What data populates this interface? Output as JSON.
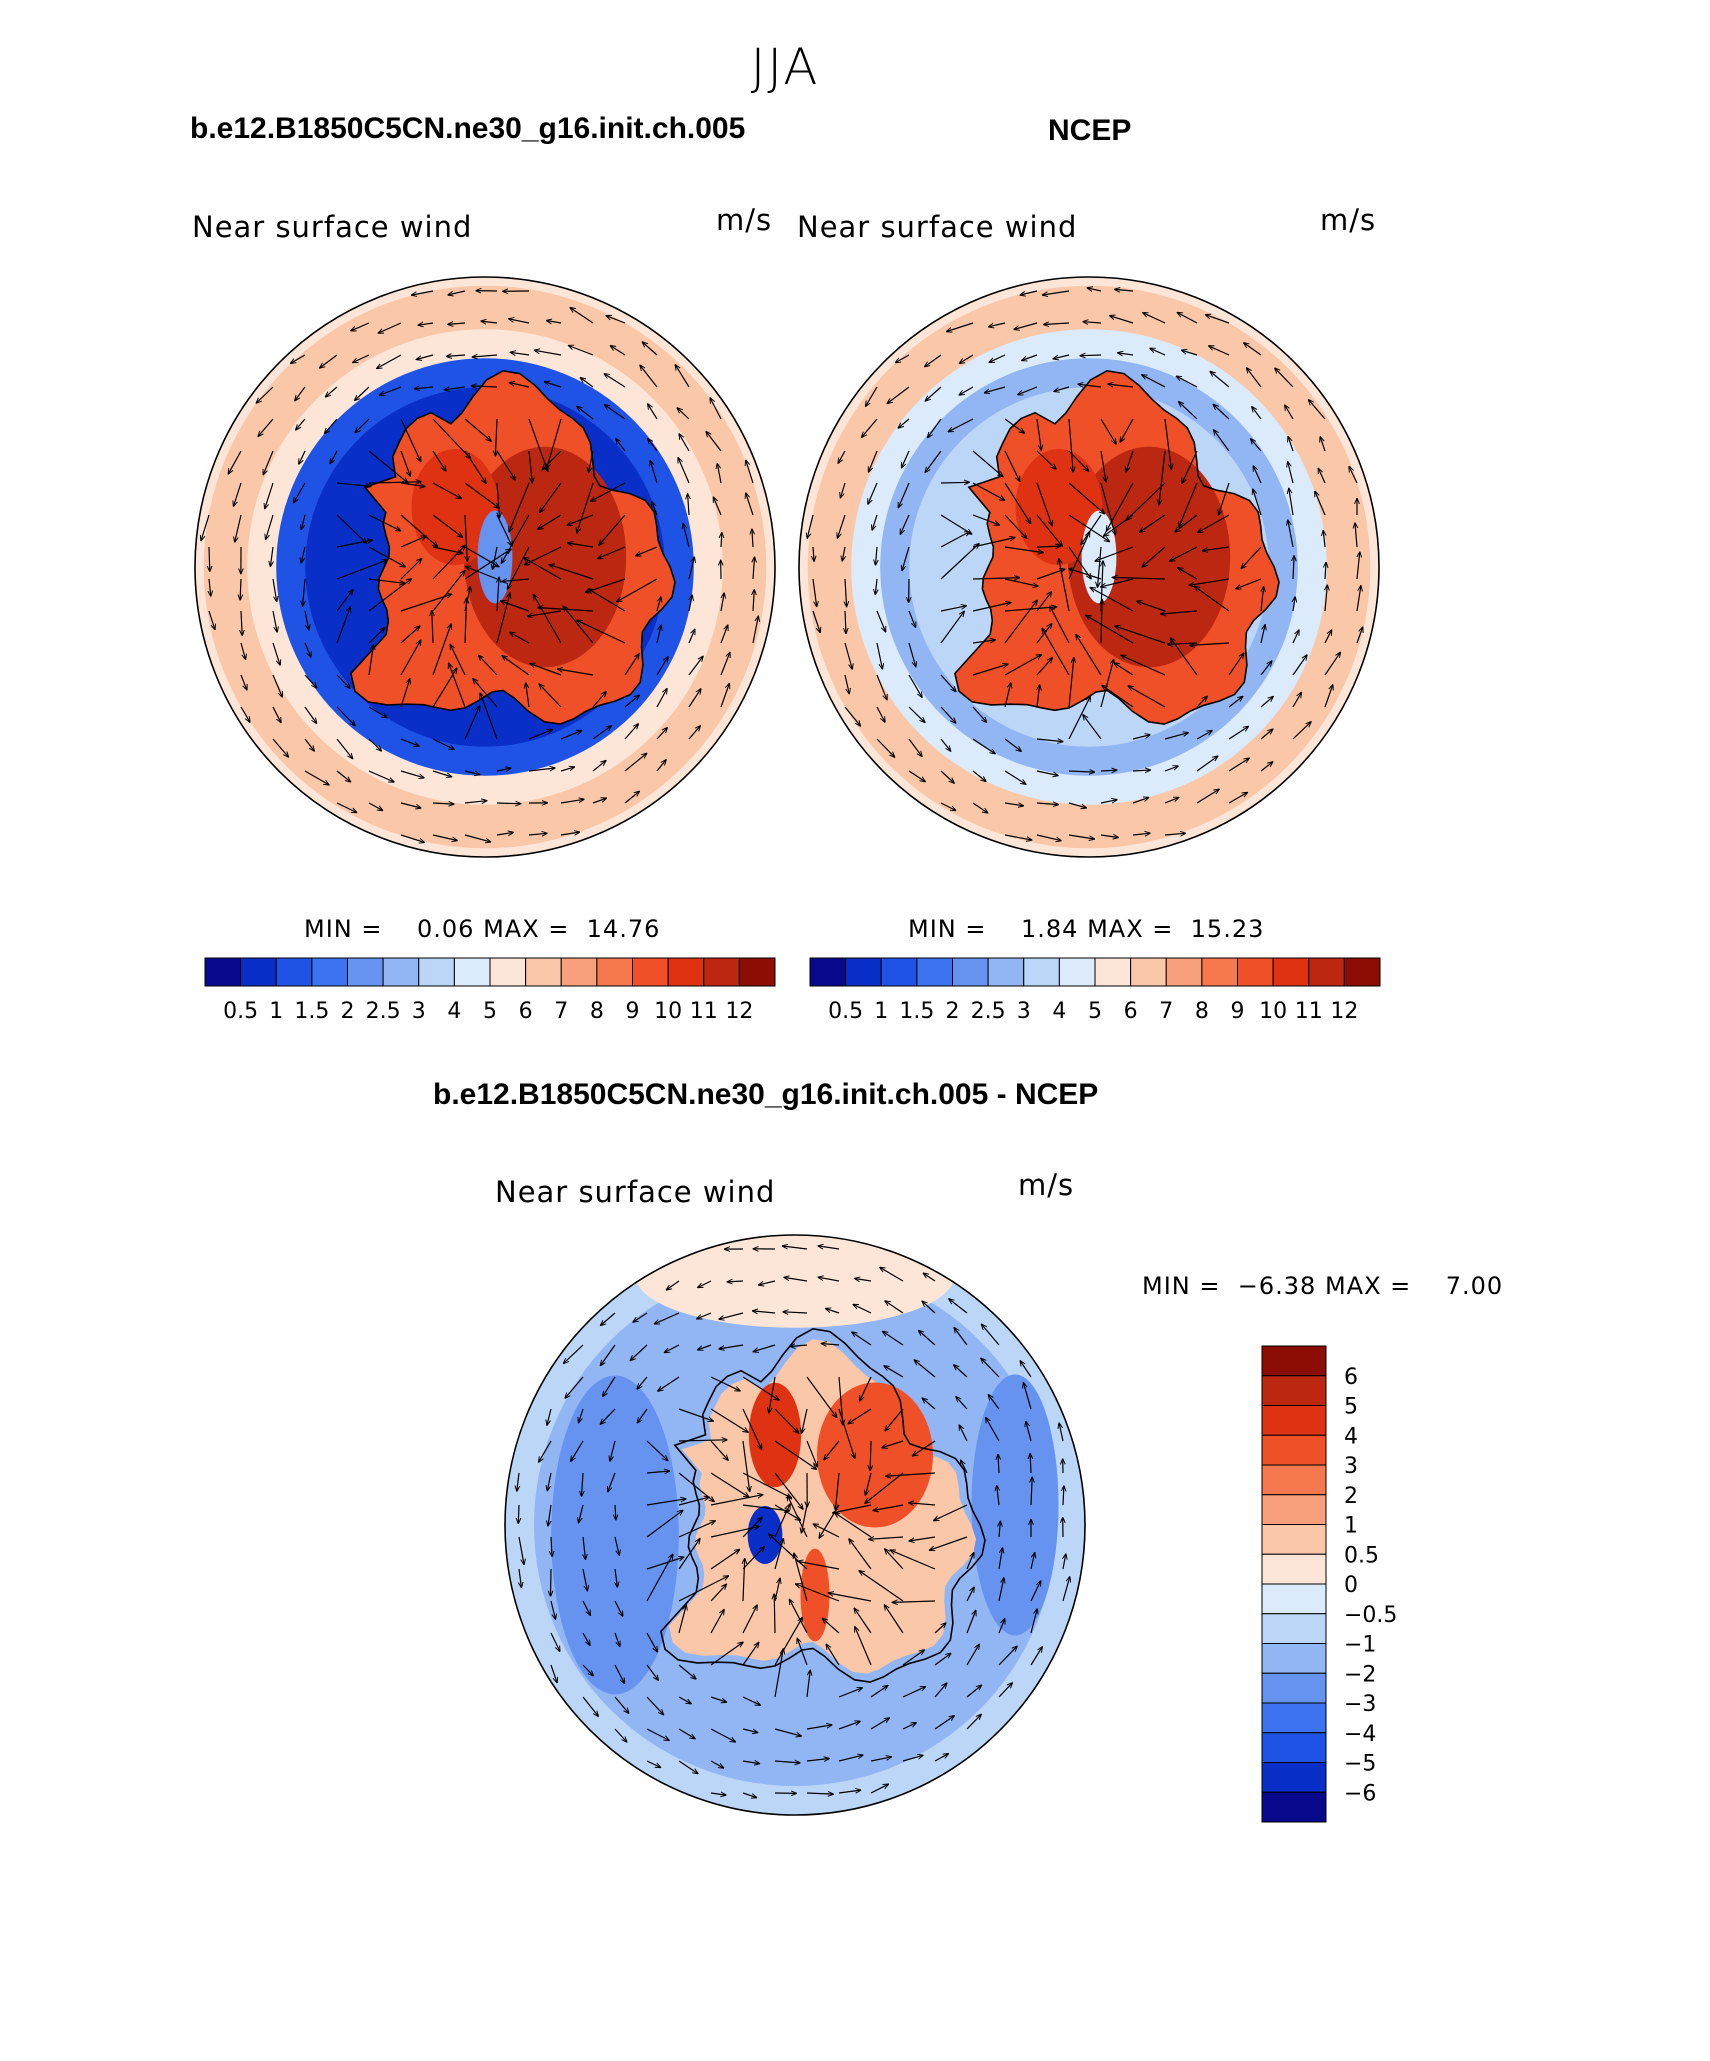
{
  "figure": {
    "season": "JJA",
    "colors": {
      "scale_abs": [
        "#08088c",
        "#0a2fc9",
        "#1f53e6",
        "#3d72f0",
        "#6693f0",
        "#92b5f4",
        "#bcd6f8",
        "#dcebfb",
        "#fde6d8",
        "#fac7a9",
        "#f8a07c",
        "#f6784f",
        "#f05028",
        "#de3213",
        "#bb2710",
        "#8c0d04"
      ],
      "scale_diff": [
        "#08088c",
        "#0a2fc9",
        "#1f53e6",
        "#3d72f0",
        "#6693f0",
        "#92b5f4",
        "#bcd6f8",
        "#dcebfb",
        "#fde6d8",
        "#fac7a9",
        "#f8a07c",
        "#f6784f",
        "#f05028",
        "#de3213",
        "#bb2710",
        "#8c0d04"
      ],
      "coastline": "#000000"
    }
  },
  "panels": [
    {
      "title": "b.e12.B1850C5CN.ne30_g16.init.ch.005",
      "variable": "Near surface wind",
      "units": "m/s",
      "min_label": "MIN =",
      "min_value": "0.06",
      "max_label": "MAX =",
      "max_value": "14.76",
      "colorbar_labels": [
        "0.5",
        "1",
        "1.5",
        "2",
        "2.5",
        "3",
        "4",
        "5",
        "6",
        "7",
        "8",
        "9",
        "10",
        "11",
        "12"
      ]
    },
    {
      "title": "NCEP",
      "variable": "Near surface wind",
      "units": "m/s",
      "min_label": "MIN =",
      "min_value": "1.84",
      "max_label": "MAX =",
      "max_value": "15.23",
      "colorbar_labels": [
        "0.5",
        "1",
        "1.5",
        "2",
        "2.5",
        "3",
        "4",
        "5",
        "6",
        "7",
        "8",
        "9",
        "10",
        "11",
        "12"
      ]
    },
    {
      "title": "b.e12.B1850C5CN.ne30_g16.init.ch.005 - NCEP",
      "variable": "Near surface wind",
      "units": "m/s",
      "min_label": "MIN =",
      "min_value": "−6.38",
      "max_label": "MAX =",
      "max_value": "7.00",
      "colorbar_labels": [
        "6",
        "5",
        "4",
        "3",
        "2",
        "1",
        "0.5",
        "0",
        "−0.5",
        "−1",
        "−2",
        "−3",
        "−4",
        "−5",
        "−6"
      ]
    }
  ]
}
